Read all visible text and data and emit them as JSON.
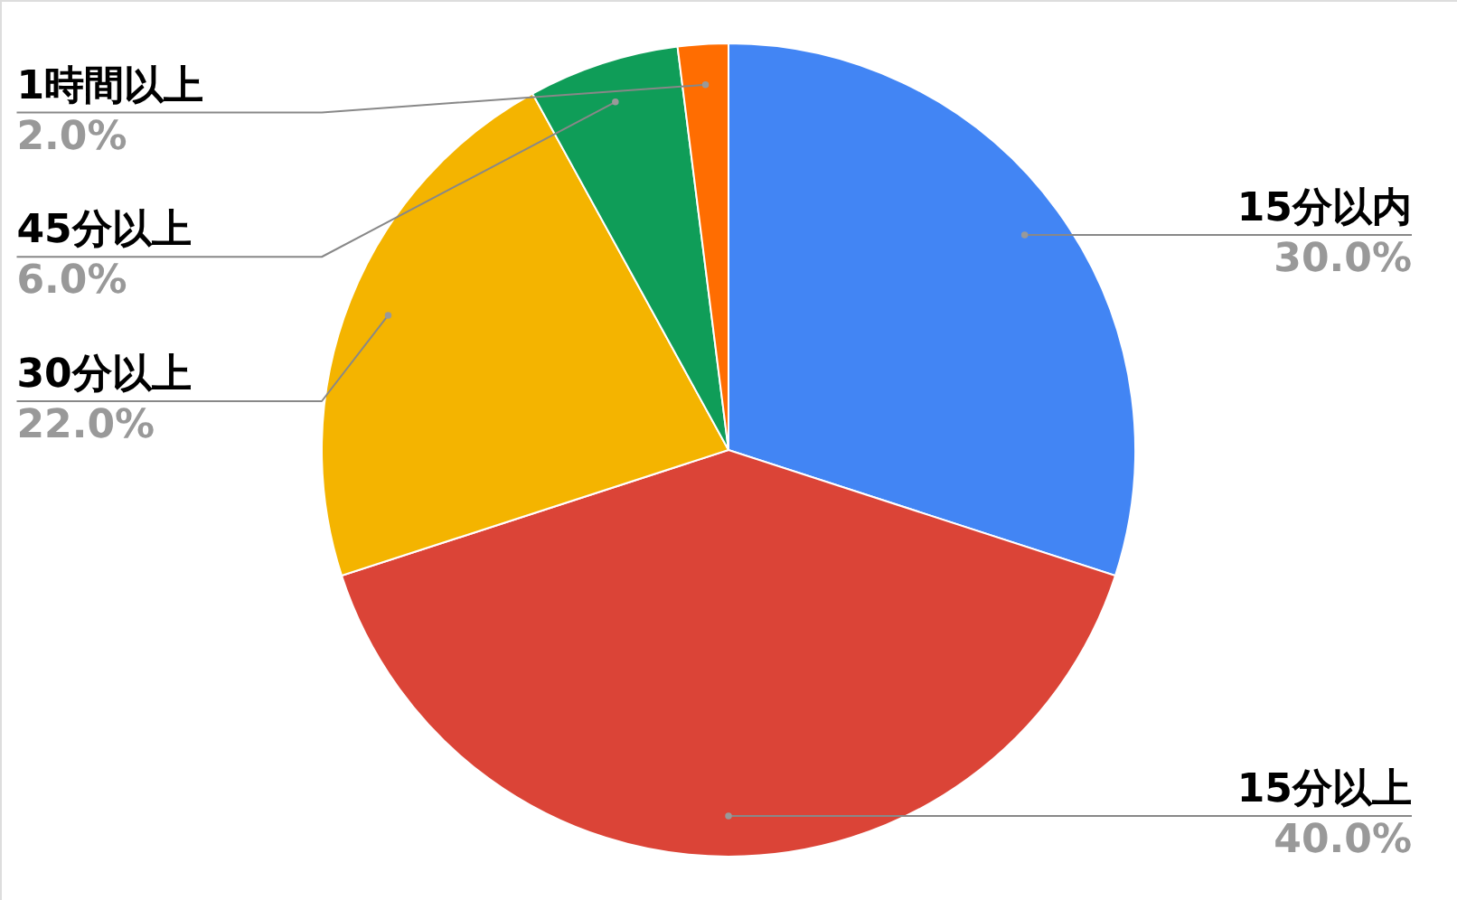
{
  "chart_data": {
    "type": "pie",
    "categories": [
      "15分以内",
      "15分以上",
      "30分以上",
      "45分以上",
      "1時間以上"
    ],
    "values": [
      30,
      40,
      22,
      6,
      2
    ],
    "value_labels": [
      "30.0%",
      "40.0%",
      "22.0%",
      "6.0%",
      "2.0%"
    ],
    "colors": [
      "#4285f4",
      "#db4437",
      "#f4b400",
      "#0f9d58",
      "#ff6d01"
    ]
  }
}
